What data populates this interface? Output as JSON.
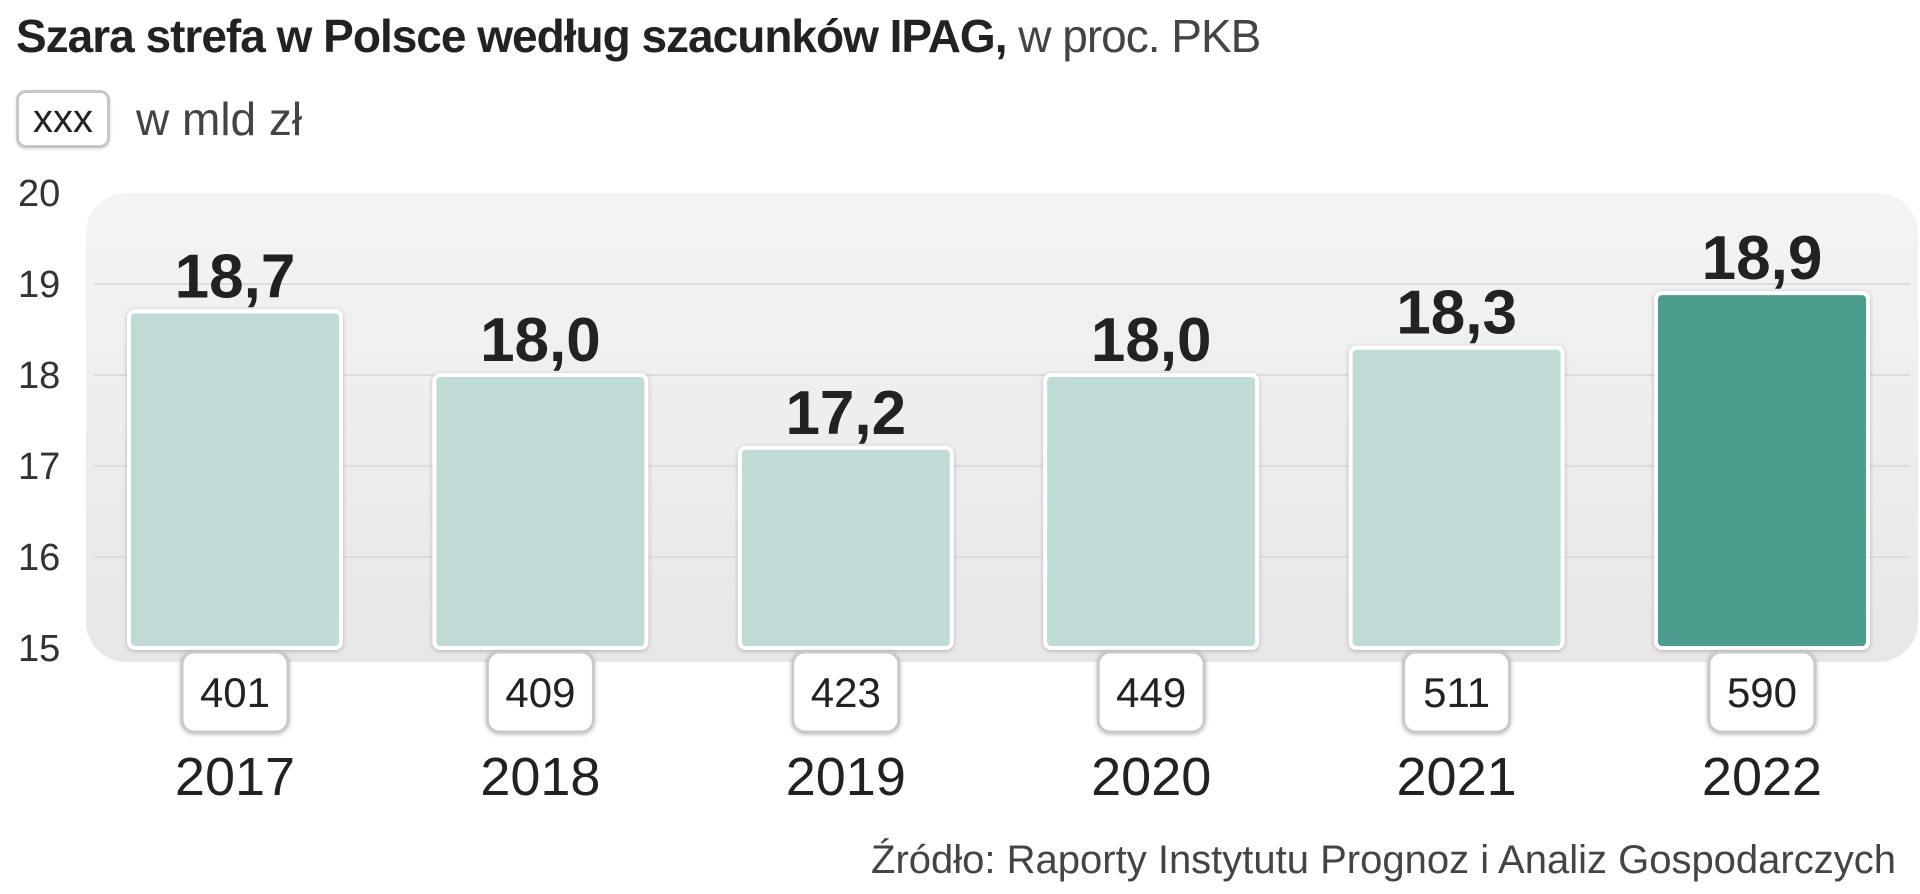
{
  "chart_data": {
    "type": "bar",
    "title": "Szara strefa w Polsce według szacunków IPAG,",
    "title_unit": "w proc. PKB",
    "legend": {
      "box_label": "xxx",
      "text": "w mld zł"
    },
    "categories": [
      "2017",
      "2018",
      "2019",
      "2020",
      "2021",
      "2022"
    ],
    "values": [
      18.7,
      18.0,
      17.2,
      18.0,
      18.3,
      18.9
    ],
    "value_labels": [
      "18,7",
      "18,0",
      "17,2",
      "18,0",
      "18,3",
      "18,9"
    ],
    "amounts_mld_zl": [
      "401",
      "409",
      "423",
      "449",
      "511",
      "590"
    ],
    "ylim": [
      15,
      20
    ],
    "yticks": [
      "15",
      "16",
      "17",
      "18",
      "19",
      "20"
    ],
    "grid": true,
    "colors": {
      "bar": "#c0dbd6",
      "highlight": "#4e9d8e",
      "panel": "#efefef",
      "grid": "#dcdcdc"
    },
    "highlight_index": 5,
    "source": "Źródło: Raporty Instytutu Prognoz i Analiz Gospodarczych"
  }
}
